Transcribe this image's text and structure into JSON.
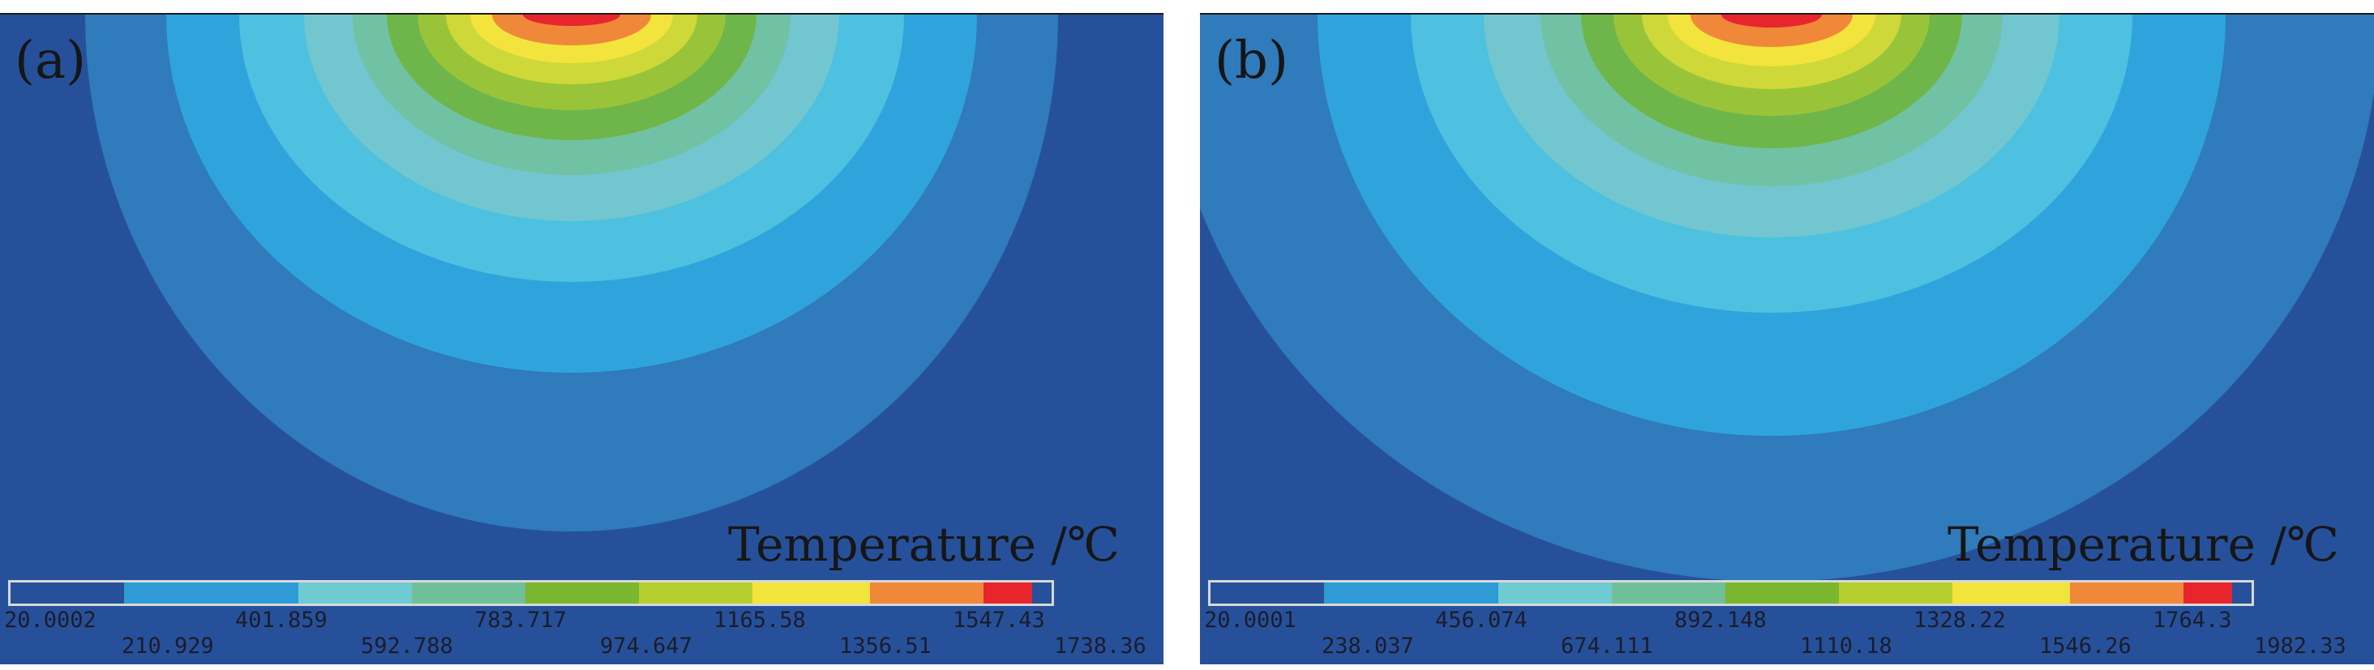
{
  "palette": [
    "#26519a",
    "#2e9bd6",
    "#6ecad3",
    "#6fc09a",
    "#7ab62e",
    "#b4cf2f",
    "#f2e43c",
    "#f0883a",
    "#e6262c"
  ],
  "panels": [
    {
      "label": "(a)",
      "legend_title": "Temperature /℃",
      "ticks_top": [
        "20.0002",
        "401.859",
        "783.717",
        "1165.58",
        "1547.43"
      ],
      "ticks_bottom": [
        "210.929",
        "592.788",
        "974.647",
        "1356.51",
        "1738.36"
      ]
    },
    {
      "label": "(b)",
      "legend_title": "Temperature /℃",
      "ticks_top": [
        "20.0001",
        "456.074",
        "892.148",
        "1328.22",
        "1764.3"
      ],
      "ticks_bottom": [
        "238.037",
        "674.111",
        "1110.18",
        "1546.26",
        "1982.33"
      ]
    }
  ]
}
